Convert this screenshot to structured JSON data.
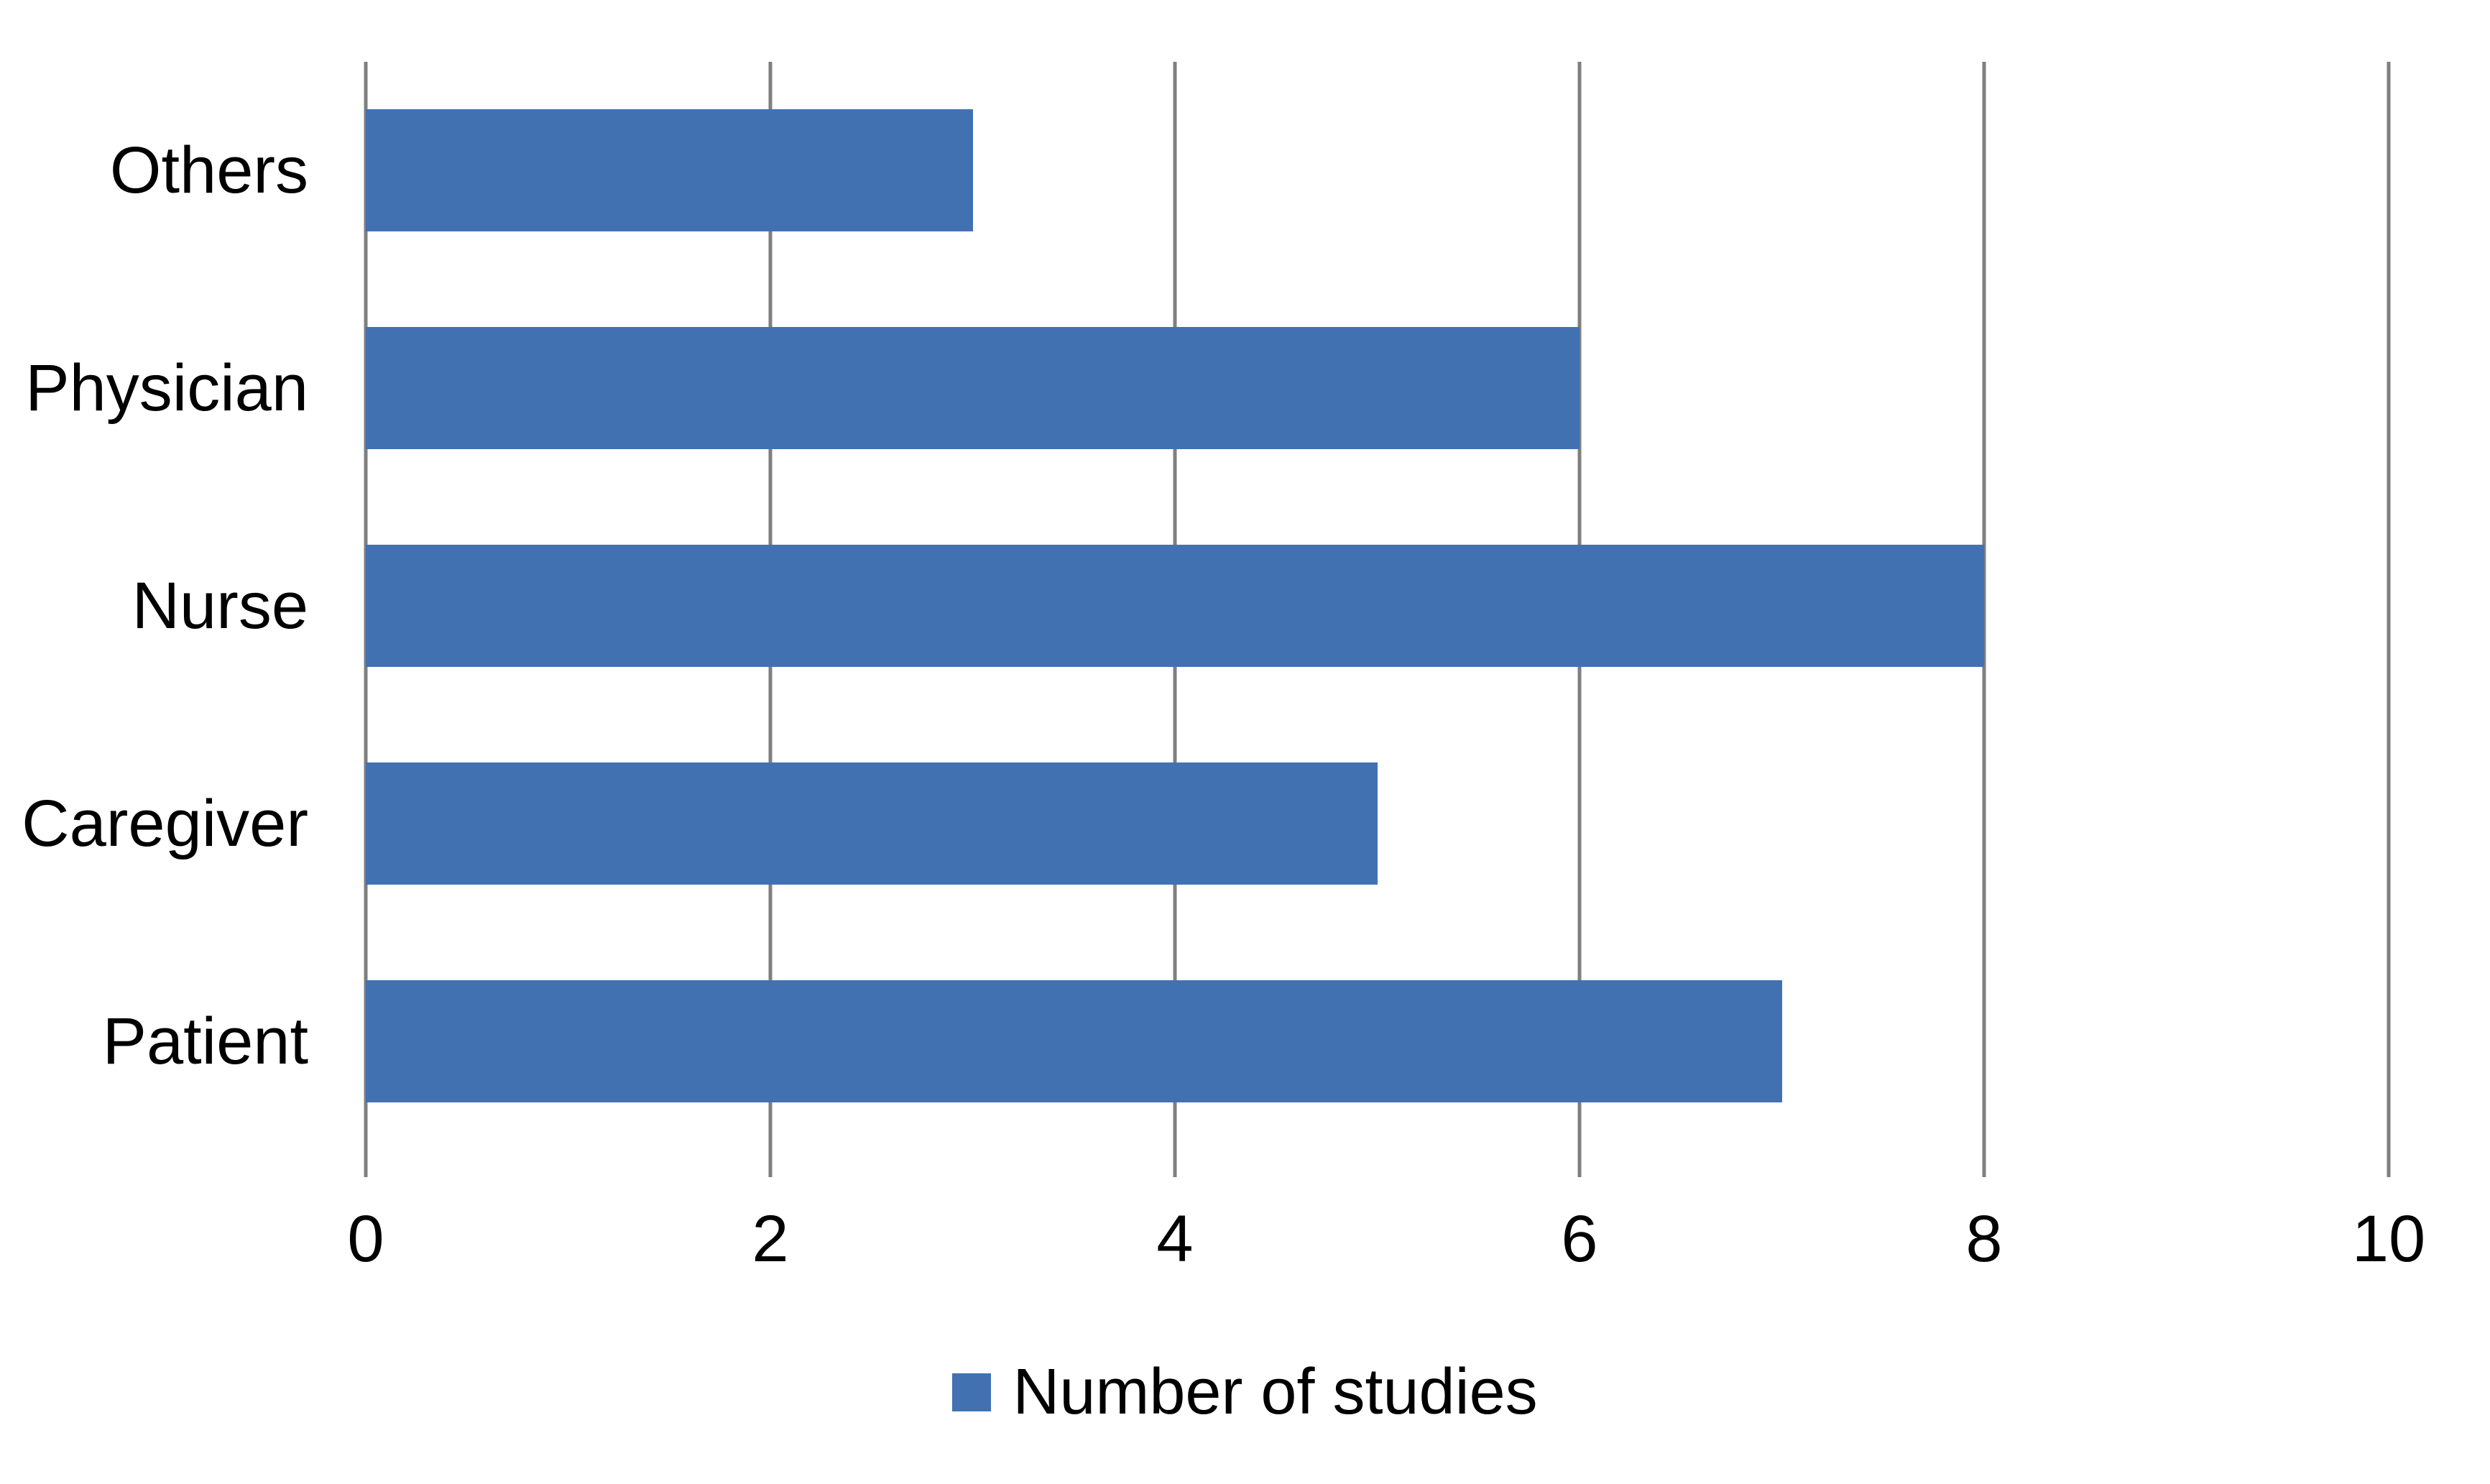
{
  "chart_data": {
    "type": "bar",
    "orientation": "horizontal",
    "title": "",
    "categories": [
      "Others",
      "Physician",
      "Nurse",
      "Caregiver",
      "Patient"
    ],
    "values": [
      3,
      6,
      8,
      5,
      7
    ],
    "series": [
      {
        "name": "Number of studies",
        "values": [
          3,
          6,
          8,
          5,
          7
        ]
      }
    ],
    "xlabel": "",
    "ylabel": "",
    "xlim": [
      0,
      10
    ],
    "x_ticks": [
      "0",
      "2",
      "4",
      "6",
      "8",
      "10"
    ],
    "x_tick_values": [
      0,
      2,
      4,
      6,
      8,
      10
    ],
    "grid": true,
    "legend": {
      "position": "bottom",
      "label": "Number of studies"
    },
    "colors": {
      "bar": "#4271B2",
      "gridline": "#7F7F7F",
      "text": "#000000",
      "background": "#FFFFFF"
    }
  }
}
